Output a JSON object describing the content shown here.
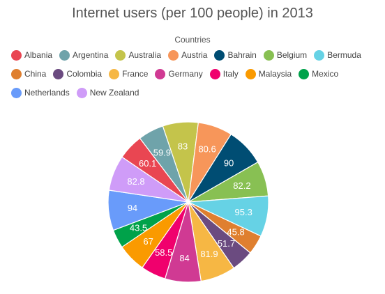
{
  "chart_data": {
    "type": "pie",
    "title": "Internet users (per 100 people) in 2013",
    "legend_title": "Countries",
    "legend_position": "top",
    "categories": [
      "Albania",
      "Argentina",
      "Australia",
      "Austria",
      "Bahrain",
      "Belgium",
      "Bermuda",
      "China",
      "Colombia",
      "France",
      "Germany",
      "Italy",
      "Malaysia",
      "Mexico",
      "Netherlands",
      "New Zealand"
    ],
    "values": [
      60.1,
      59.9,
      83,
      80.6,
      90,
      82.2,
      95.3,
      45.8,
      51.7,
      81.9,
      84,
      58.5,
      67,
      43.5,
      94,
      82.8
    ],
    "colors": [
      "#e94652",
      "#6fa3aa",
      "#c4c44b",
      "#f7965a",
      "#004d73",
      "#88c053",
      "#66d2e5",
      "#df7f2f",
      "#6b4b80",
      "#f6b744",
      "#d03a93",
      "#f0006d",
      "#fa9a00",
      "#00a24a",
      "#699bfa",
      "#cf9cf8"
    ],
    "value_labels_visible": [
      true,
      true,
      true,
      true,
      true,
      true,
      true,
      true,
      true,
      true,
      true,
      true,
      true,
      true,
      true,
      true
    ]
  }
}
